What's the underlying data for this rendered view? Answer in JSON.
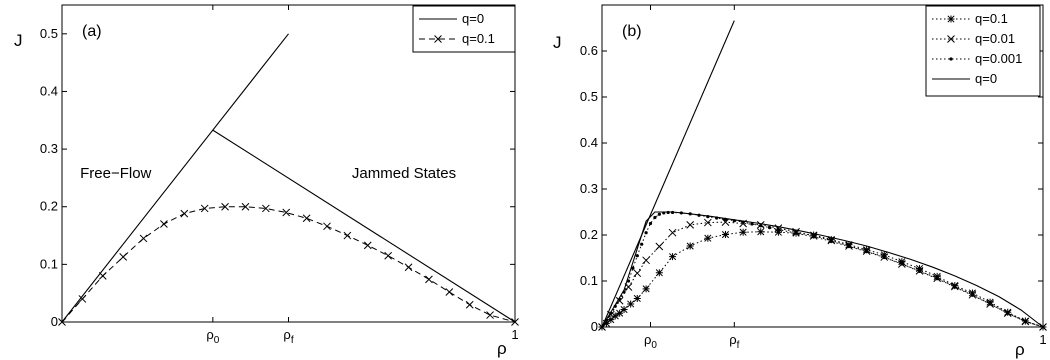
{
  "chart_data": [
    {
      "panel": "(a)",
      "type": "line",
      "xlabel": "ρ",
      "ylabel": "J",
      "xlim": [
        0,
        1
      ],
      "ylim": [
        0,
        0.55
      ],
      "x_ticks": [
        {
          "value": 0.333,
          "label": "ρ",
          "sub": "0"
        },
        {
          "value": 0.5,
          "label": "ρ",
          "sub": "f"
        },
        {
          "value": 1,
          "label": "1",
          "sub": ""
        }
      ],
      "y_ticks": [
        {
          "value": 0,
          "label": "0"
        },
        {
          "value": 0.1,
          "label": "0.1"
        },
        {
          "value": 0.2,
          "label": "0.2"
        },
        {
          "value": 0.3,
          "label": "0.3"
        },
        {
          "value": 0.4,
          "label": "0.4"
        },
        {
          "value": 0.5,
          "label": "0.5"
        }
      ],
      "legend_position": "top-right",
      "annotations": [
        {
          "text": "Free−Flow",
          "x": 0.04,
          "y": 0.25
        },
        {
          "text": "Jammed States",
          "x": 0.64,
          "y": 0.25
        }
      ],
      "series": [
        {
          "name": "q=0",
          "style": "solid",
          "marker": "none",
          "segments": [
            [
              [
                0,
                0
              ],
              [
                0.5,
                0.5
              ]
            ],
            [
              [
                0.333,
                0.333
              ],
              [
                1,
                0
              ]
            ]
          ]
        },
        {
          "name": "q=0.1",
          "style": "dashed",
          "marker": "x",
          "x": [
            0,
            0.045,
            0.09,
            0.135,
            0.18,
            0.225,
            0.27,
            0.315,
            0.36,
            0.405,
            0.45,
            0.495,
            0.54,
            0.585,
            0.63,
            0.675,
            0.72,
            0.765,
            0.81,
            0.855,
            0.9,
            0.945,
            1
          ],
          "y": [
            0,
            0.04,
            0.08,
            0.113,
            0.145,
            0.17,
            0.188,
            0.197,
            0.2,
            0.2,
            0.197,
            0.19,
            0.18,
            0.166,
            0.15,
            0.133,
            0.115,
            0.095,
            0.074,
            0.052,
            0.03,
            0.012,
            0
          ]
        }
      ]
    },
    {
      "panel": "(b)",
      "type": "line",
      "xlabel": "ρ",
      "ylabel": "J",
      "xlim": [
        0,
        1
      ],
      "ylim": [
        0,
        0.7
      ],
      "x_ticks": [
        {
          "value": 0.11,
          "label": "ρ",
          "sub": "0"
        },
        {
          "value": 0.3,
          "label": "ρ",
          "sub": "f"
        },
        {
          "value": 1,
          "label": "1",
          "sub": ""
        }
      ],
      "y_ticks": [
        {
          "value": 0,
          "label": "0"
        },
        {
          "value": 0.1,
          "label": "0.1"
        },
        {
          "value": 0.2,
          "label": "0.2"
        },
        {
          "value": 0.3,
          "label": "0.3"
        },
        {
          "value": 0.4,
          "label": "0.4"
        },
        {
          "value": 0.5,
          "label": "0.5"
        },
        {
          "value": 0.6,
          "label": "0.6"
        }
      ],
      "legend_position": "top-right",
      "series": [
        {
          "name": "q=0.1",
          "style": "dotted",
          "marker": "star",
          "x": [
            0,
            0.01,
            0.02,
            0.03,
            0.04,
            0.05,
            0.065,
            0.08,
            0.1,
            0.13,
            0.16,
            0.2,
            0.24,
            0.28,
            0.32,
            0.36,
            0.4,
            0.44,
            0.48,
            0.52,
            0.56,
            0.6,
            0.64,
            0.68,
            0.72,
            0.76,
            0.8,
            0.84,
            0.88,
            0.92,
            0.96,
            1
          ],
          "y": [
            0,
            0.008,
            0.016,
            0.024,
            0.03,
            0.038,
            0.05,
            0.062,
            0.083,
            0.118,
            0.153,
            0.176,
            0.193,
            0.201,
            0.206,
            0.207,
            0.206,
            0.204,
            0.2,
            0.19,
            0.179,
            0.168,
            0.157,
            0.142,
            0.127,
            0.11,
            0.09,
            0.074,
            0.054,
            0.032,
            0.013,
            0
          ]
        },
        {
          "name": "q=0.01",
          "style": "dotted",
          "marker": "x",
          "x": [
            0,
            0.02,
            0.04,
            0.06,
            0.08,
            0.1,
            0.13,
            0.16,
            0.2,
            0.24,
            0.28,
            0.32,
            0.36,
            0.4,
            0.44,
            0.48,
            0.52,
            0.56,
            0.6,
            0.64,
            0.68,
            0.72,
            0.76,
            0.8,
            0.84,
            0.88,
            0.92,
            0.96,
            1
          ],
          "y": [
            0,
            0.027,
            0.057,
            0.087,
            0.117,
            0.145,
            0.175,
            0.205,
            0.222,
            0.227,
            0.228,
            0.225,
            0.222,
            0.215,
            0.207,
            0.198,
            0.188,
            0.176,
            0.165,
            0.152,
            0.137,
            0.122,
            0.106,
            0.088,
            0.07,
            0.05,
            0.03,
            0.012,
            0
          ]
        },
        {
          "name": "q=0.001",
          "style": "dotted",
          "marker": "dot",
          "x": [
            0,
            0.01,
            0.02,
            0.03,
            0.04,
            0.05,
            0.06,
            0.07,
            0.08,
            0.09,
            0.1,
            0.11,
            0.12,
            0.13,
            0.14,
            0.15,
            0.16,
            0.18,
            0.2,
            0.22,
            0.24,
            0.26,
            0.28,
            0.3,
            0.32,
            0.34,
            0.36,
            0.38,
            0.4,
            0.44,
            0.48,
            0.52,
            0.56,
            0.6,
            0.64,
            0.68,
            0.72,
            0.76,
            0.8,
            0.84,
            0.88,
            0.92,
            0.96,
            1
          ],
          "y": [
            0,
            0.015,
            0.03,
            0.045,
            0.06,
            0.076,
            0.1,
            0.128,
            0.155,
            0.18,
            0.205,
            0.225,
            0.238,
            0.245,
            0.248,
            0.249,
            0.249,
            0.248,
            0.246,
            0.243,
            0.24,
            0.237,
            0.234,
            0.231,
            0.228,
            0.224,
            0.22,
            0.216,
            0.212,
            0.204,
            0.196,
            0.186,
            0.175,
            0.164,
            0.151,
            0.137,
            0.121,
            0.105,
            0.087,
            0.069,
            0.05,
            0.03,
            0.012,
            0
          ]
        },
        {
          "name": "q=0",
          "style": "solid",
          "marker": "none",
          "x": [
            0,
            0.3,
            0.3
          ],
          "y": [
            0,
            0.666,
            0.666
          ],
          "curve": {
            "x": [
              0,
              0.05,
              0.1,
              0.12,
              0.14,
              0.16,
              0.2,
              0.25,
              0.3,
              0.35,
              0.4,
              0.45,
              0.5,
              0.55,
              0.6,
              0.65,
              0.7,
              0.75,
              0.8,
              0.85,
              0.9,
              0.95,
              1
            ],
            "y": [
              0,
              0.08,
              0.23,
              0.25,
              0.25,
              0.25,
              0.246,
              0.24,
              0.233,
              0.226,
              0.218,
              0.209,
              0.199,
              0.188,
              0.176,
              0.162,
              0.147,
              0.13,
              0.111,
              0.09,
              0.066,
              0.037,
              0
            ]
          }
        }
      ]
    }
  ]
}
